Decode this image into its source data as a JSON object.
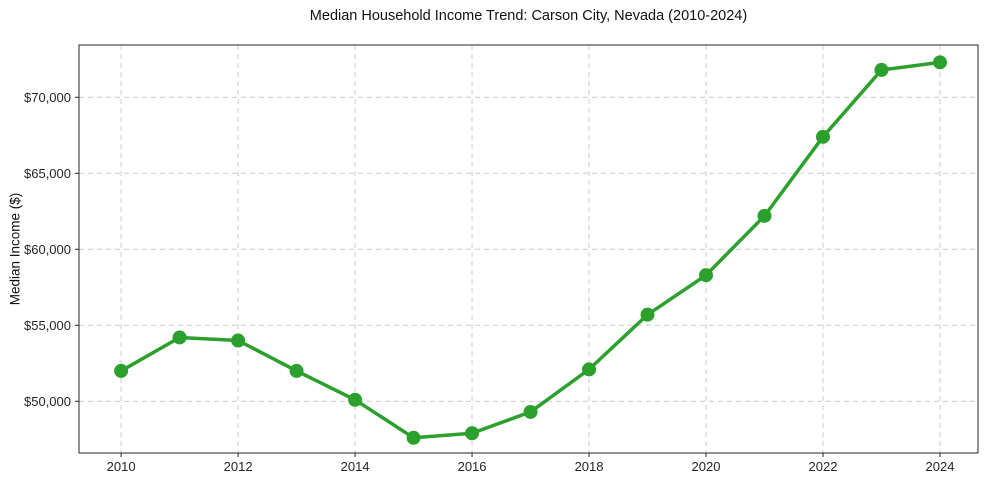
{
  "chart_data": {
    "type": "line",
    "title": "Median Household Income Trend: Carson City, Nevada (2010-2024)",
    "ylabel": "Median Income ($)",
    "xlabel": "",
    "series": [
      {
        "name": "Median household income",
        "x": [
          2010,
          2011,
          2012,
          2013,
          2014,
          2015,
          2016,
          2017,
          2018,
          2019,
          2020,
          2021,
          2022,
          2023,
          2024
        ],
        "values": [
          52000,
          54200,
          54000,
          52000,
          50100,
          47600,
          47900,
          49300,
          52100,
          55700,
          58300,
          62200,
          67400,
          71800,
          72300
        ]
      }
    ],
    "xticks": [
      2010,
      2012,
      2014,
      2016,
      2018,
      2020,
      2022,
      2024
    ],
    "ytick_values": [
      50000,
      55000,
      60000,
      65000,
      70000
    ],
    "ytick_labels": [
      "$50,000",
      "$55,000",
      "$60,000",
      "$65,000",
      "$70,000"
    ],
    "xlim": [
      2009.28,
      2024.65
    ],
    "ylim": [
      46600,
      73440
    ],
    "grid": true,
    "grid_style": "dashed",
    "legend": null,
    "line_color": "#2ca02c",
    "marker": "circle",
    "grid_color": "#cccccc",
    "axis_color": "#262626",
    "text_color": "#262626"
  }
}
